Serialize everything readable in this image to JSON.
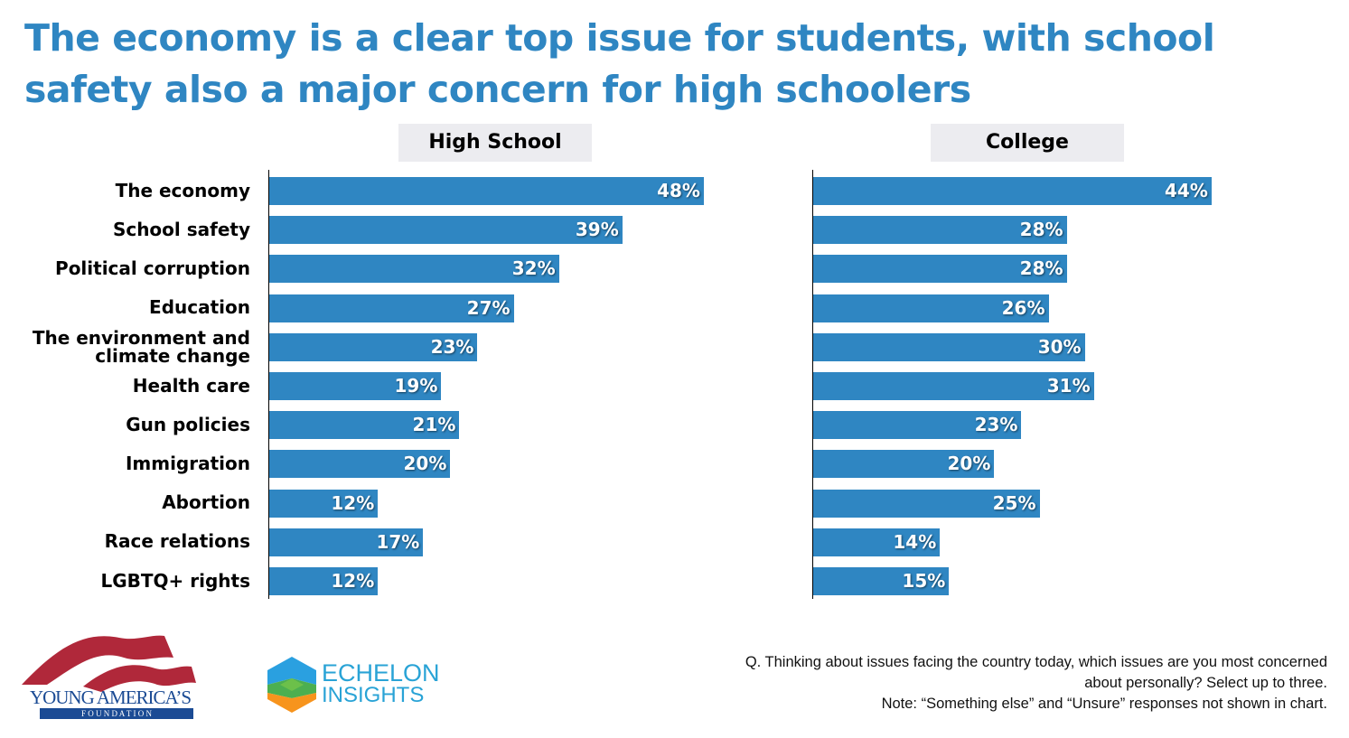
{
  "title": "The economy is a clear top issue for students, with school safety also a major concern for high schoolers",
  "colors": {
    "title": "#2f86c2",
    "bar": "#2f86c2",
    "panel_header_bg": "#ececf0"
  },
  "chart_data": [
    {
      "type": "bar",
      "orientation": "horizontal",
      "title": "High School",
      "categories": [
        "The economy",
        "School safety",
        "Political corruption",
        "Education",
        "The environment and climate change",
        "Health care",
        "Gun policies",
        "Immigration",
        "Abortion",
        "Race relations",
        "LGBTQ+ rights"
      ],
      "values": [
        48,
        39,
        32,
        27,
        23,
        19,
        21,
        20,
        12,
        17,
        12
      ],
      "value_labels": [
        "48%",
        "39%",
        "32%",
        "27%",
        "23%",
        "19%",
        "21%",
        "20%",
        "12%",
        "17%",
        "12%"
      ],
      "unit": "%",
      "xlim": [
        0,
        50
      ],
      "grid": false,
      "legend": "none"
    },
    {
      "type": "bar",
      "orientation": "horizontal",
      "title": "College",
      "categories": [
        "The economy",
        "School safety",
        "Political corruption",
        "Education",
        "The environment and climate change",
        "Health care",
        "Gun policies",
        "Immigration",
        "Abortion",
        "Race relations",
        "LGBTQ+ rights"
      ],
      "values": [
        44,
        28,
        28,
        26,
        30,
        31,
        23,
        20,
        25,
        14,
        15
      ],
      "value_labels": [
        "44%",
        "28%",
        "28%",
        "26%",
        "30%",
        "31%",
        "23%",
        "20%",
        "25%",
        "14%",
        "15%"
      ],
      "unit": "%",
      "xlim": [
        0,
        50
      ],
      "grid": false,
      "legend": "none"
    }
  ],
  "category_labels": [
    {
      "lines": [
        "The economy"
      ]
    },
    {
      "lines": [
        "School safety"
      ]
    },
    {
      "lines": [
        "Political corruption"
      ]
    },
    {
      "lines": [
        "Education"
      ]
    },
    {
      "lines": [
        "The environment and",
        "climate change"
      ]
    },
    {
      "lines": [
        "Health care"
      ]
    },
    {
      "lines": [
        "Gun policies"
      ]
    },
    {
      "lines": [
        "Immigration"
      ]
    },
    {
      "lines": [
        "Abortion"
      ]
    },
    {
      "lines": [
        "Race relations"
      ]
    },
    {
      "lines": [
        "LGBTQ+ rights"
      ]
    }
  ],
  "footer": {
    "question_line1": "Q. Thinking about issues facing the country today, which issues are you most concerned",
    "question_line2": "about personally? Select up to three.",
    "note": "Note: “Something else” and “Unsure”  responses not shown in chart.",
    "logos": {
      "yaf_line1": "YOUNG AMERICA’S",
      "yaf_line2": "F O U N D A T I O N",
      "echelon_line1": "ECHELON",
      "echelon_line2": "INSIGHTS"
    }
  }
}
